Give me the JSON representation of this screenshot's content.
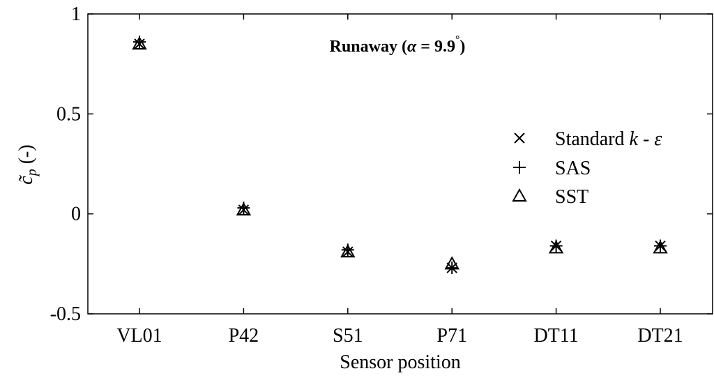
{
  "chart_data": {
    "type": "scatter",
    "title": "",
    "annotation": {
      "prefix": "Runaway (",
      "symbol": "α",
      "eq": " = 9.9",
      "degree": "°",
      "suffix": ")"
    },
    "xlabel": "Sensor position",
    "ylabel": {
      "base": "c̃",
      "sub": "p",
      "unit": " (-)"
    },
    "categories": [
      "VL01",
      "P42",
      "S51",
      "P71",
      "DT11",
      "DT21"
    ],
    "ylim": [
      -0.5,
      1
    ],
    "yticks": [
      -0.5,
      0,
      0.5,
      1
    ],
    "ytick_labels": [
      "-0.5",
      "0",
      "0.5",
      "1"
    ],
    "grid": false,
    "legend_position": "right",
    "series": [
      {
        "name_parts": [
          "Standard ",
          "k",
          " - ",
          "ε"
        ],
        "marker": "x",
        "values": [
          0.85,
          0.02,
          -0.19,
          -0.27,
          -0.16,
          -0.16
        ]
      },
      {
        "name": "SAS",
        "marker": "plus",
        "values": [
          0.86,
          0.03,
          -0.18,
          -0.27,
          -0.16,
          -0.16
        ]
      },
      {
        "name": "SST",
        "marker": "triangle",
        "values": [
          0.85,
          0.02,
          -0.19,
          -0.25,
          -0.17,
          -0.17
        ]
      }
    ]
  }
}
